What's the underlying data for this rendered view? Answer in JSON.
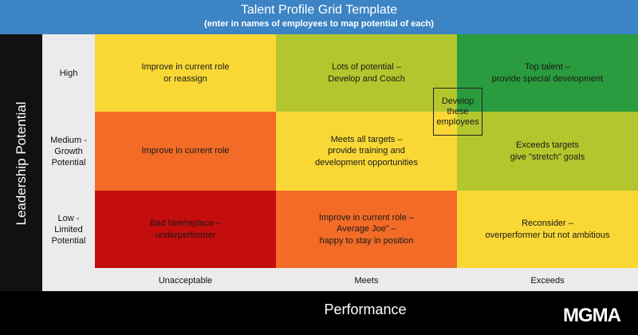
{
  "header": {
    "title": "Talent Profile Grid Template",
    "subtitle": "(enter in names of employees to map potential of each)"
  },
  "y_axis_label": "Leadership Potential",
  "x_axis_label": "Performance",
  "rows": [
    {
      "label": "High",
      "cells": [
        {
          "text": "Improve in current role\nor reassign",
          "color": "#f9d835"
        },
        {
          "text": "Lots of potential –\nDevelop and Coach",
          "color": "#b4c62d"
        },
        {
          "text": "Top talent –\nprovide special development",
          "color": "#2a9b3e"
        }
      ]
    },
    {
      "label": "Medium -\nGrowth\nPotential",
      "cells": [
        {
          "text": "Improve in current role",
          "color": "#f26b27"
        },
        {
          "text": "Meets all targets –\nprovide training and\ndevelopment opportunities",
          "color": "#f9d835"
        },
        {
          "text": "Exceeds targets\ngive \"stretch\" goals",
          "color": "#b4c62d"
        }
      ]
    },
    {
      "label": "Low -\nLimited\nPotential",
      "cells": [
        {
          "text": "Bad hire/replace –\nunderperformer",
          "color": "#c40d0d"
        },
        {
          "text": "Improve in current role –\nAverage Joe\" –\nhappy to stay in position",
          "color": "#f26b27"
        },
        {
          "text": "Reconsider –\noverperformer but not ambitious",
          "color": "#f9d835"
        }
      ]
    }
  ],
  "columns": [
    "Unacceptable",
    "Meets",
    "Exceeds"
  ],
  "callout": "Develop\nthese\nemployees",
  "logo": "MGMA"
}
